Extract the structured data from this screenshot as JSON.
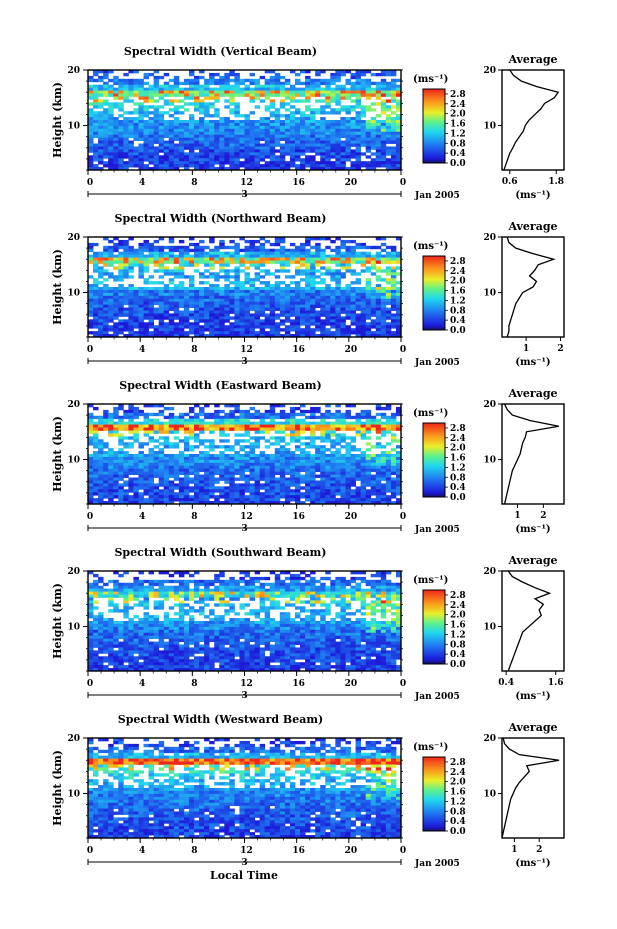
{
  "figure": {
    "x_axis_label": "Local Time",
    "date_label": "Jan 2005",
    "date_tick": "3"
  },
  "chart_data": [
    {
      "type": "heatmap",
      "title": "Spectral Width (Vertical Beam)",
      "ylabel": "Height (km)",
      "xlabel": "Local Time",
      "x_ticks": [
        "0",
        "4",
        "8",
        "12",
        "16",
        "20",
        "0"
      ],
      "x_range": [
        0,
        24
      ],
      "y_ticks": [
        "20",
        "10"
      ],
      "y_range": [
        2,
        20
      ],
      "colorbar": {
        "unit": "(ms⁻¹)",
        "ticks": [
          "2.8",
          "2.4",
          "2.0",
          "1.6",
          "1.2",
          "0.8",
          "0.4",
          "0.0"
        ],
        "range": [
          0,
          3.0
        ]
      },
      "average": {
        "title": "Average",
        "xlabel": "(ms⁻¹)",
        "x_ticks": [
          "0.6",
          "1.8"
        ],
        "x_range": [
          0.4,
          2.0
        ],
        "y_ticks": [
          "20",
          "10"
        ],
        "heights": [
          2,
          3,
          4,
          5,
          6,
          7,
          8,
          9,
          10,
          11,
          12,
          13,
          14,
          15,
          16,
          17,
          18,
          19,
          20
        ],
        "values": [
          0.45,
          0.5,
          0.55,
          0.6,
          0.68,
          0.75,
          0.85,
          0.95,
          1.0,
          1.1,
          1.25,
          1.4,
          1.5,
          1.75,
          1.85,
          1.3,
          0.9,
          0.7,
          0.6
        ]
      }
    },
    {
      "type": "heatmap",
      "title": "Spectral Width (Northward Beam)",
      "ylabel": "Height (km)",
      "xlabel": "Local Time",
      "x_ticks": [
        "0",
        "4",
        "8",
        "12",
        "16",
        "20",
        "0"
      ],
      "x_range": [
        0,
        24
      ],
      "y_ticks": [
        "20",
        "10"
      ],
      "y_range": [
        2,
        20
      ],
      "colorbar": {
        "unit": "(ms⁻¹)",
        "ticks": [
          "2.8",
          "2.4",
          "2.0",
          "1.6",
          "1.2",
          "0.8",
          "0.4",
          "0.0"
        ],
        "range": [
          0,
          3.0
        ]
      },
      "average": {
        "title": "Average",
        "xlabel": "(ms⁻¹)",
        "x_ticks": [
          "1",
          "2"
        ],
        "x_range": [
          0.3,
          2.1
        ],
        "y_ticks": [
          "20",
          "10"
        ],
        "heights": [
          2,
          3,
          4,
          5,
          6,
          7,
          8,
          9,
          10,
          11,
          12,
          13,
          14,
          15,
          16,
          17,
          18,
          19,
          20
        ],
        "values": [
          0.45,
          0.5,
          0.5,
          0.55,
          0.6,
          0.65,
          0.7,
          0.8,
          0.9,
          1.2,
          1.3,
          1.1,
          1.25,
          1.35,
          1.8,
          1.2,
          0.7,
          0.5,
          0.45
        ]
      }
    },
    {
      "type": "heatmap",
      "title": "Spectral Width (Eastward Beam)",
      "ylabel": "Height (km)",
      "xlabel": "Local Time",
      "x_ticks": [
        "0",
        "4",
        "8",
        "12",
        "16",
        "20",
        "0"
      ],
      "x_range": [
        0,
        24
      ],
      "y_ticks": [
        "20",
        "10"
      ],
      "y_range": [
        2,
        20
      ],
      "colorbar": {
        "unit": "(ms⁻¹)",
        "ticks": [
          "2.8",
          "2.4",
          "2.0",
          "1.6",
          "1.2",
          "0.8",
          "0.4",
          "0.0"
        ],
        "range": [
          0,
          3.0
        ]
      },
      "average": {
        "title": "Average",
        "xlabel": "(ms⁻¹)",
        "x_ticks": [
          "1",
          "2"
        ],
        "x_range": [
          0.4,
          2.8
        ],
        "y_ticks": [
          "20",
          "10"
        ],
        "heights": [
          2,
          3,
          4,
          5,
          6,
          7,
          8,
          9,
          10,
          11,
          12,
          13,
          14,
          15,
          16,
          17,
          18,
          19,
          20
        ],
        "values": [
          0.5,
          0.55,
          0.6,
          0.65,
          0.7,
          0.75,
          0.8,
          0.9,
          1.0,
          1.1,
          1.15,
          1.2,
          1.3,
          1.35,
          2.6,
          1.5,
          0.8,
          0.6,
          0.5
        ]
      }
    },
    {
      "type": "heatmap",
      "title": "Spectral Width (Southward Beam)",
      "ylabel": "Height (km)",
      "xlabel": "Local Time",
      "x_ticks": [
        "0",
        "4",
        "8",
        "12",
        "16",
        "20",
        "0"
      ],
      "x_range": [
        0,
        24
      ],
      "y_ticks": [
        "20",
        "10"
      ],
      "y_range": [
        2,
        20
      ],
      "colorbar": {
        "unit": "(ms⁻¹)",
        "ticks": [
          "2.8",
          "2.4",
          "2.0",
          "1.6",
          "1.2",
          "0.8",
          "0.4",
          "0.0"
        ],
        "range": [
          0,
          3.0
        ]
      },
      "average": {
        "title": "Average",
        "xlabel": "(ms⁻¹)",
        "x_ticks": [
          "0.4",
          "1.6"
        ],
        "x_range": [
          0.3,
          1.8
        ],
        "y_ticks": [
          "20",
          "10"
        ],
        "heights": [
          2,
          3,
          4,
          5,
          6,
          7,
          8,
          9,
          10,
          11,
          12,
          13,
          14,
          15,
          16,
          17,
          18,
          19,
          20
        ],
        "values": [
          0.45,
          0.5,
          0.55,
          0.6,
          0.65,
          0.7,
          0.75,
          0.8,
          0.95,
          1.1,
          1.25,
          1.2,
          1.3,
          1.1,
          1.45,
          1.1,
          0.8,
          0.55,
          0.45
        ]
      }
    },
    {
      "type": "heatmap",
      "title": "Spectral Width (Westward Beam)",
      "ylabel": "Height (km)",
      "xlabel": "Local Time",
      "x_ticks": [
        "0",
        "4",
        "8",
        "12",
        "16",
        "20",
        "0"
      ],
      "x_range": [
        0,
        24
      ],
      "y_ticks": [
        "20",
        "10"
      ],
      "y_range": [
        2,
        20
      ],
      "colorbar": {
        "unit": "(ms⁻¹)",
        "ticks": [
          "2.8",
          "2.4",
          "2.0",
          "1.6",
          "1.2",
          "0.8",
          "0.4",
          "0.0"
        ],
        "range": [
          0,
          3.0
        ]
      },
      "average": {
        "title": "Average",
        "xlabel": "(ms⁻¹)",
        "x_ticks": [
          "1",
          "2"
        ],
        "x_range": [
          0.5,
          3.0
        ],
        "y_ticks": [
          "20",
          "10"
        ],
        "heights": [
          2,
          3,
          4,
          5,
          6,
          7,
          8,
          9,
          10,
          11,
          12,
          13,
          14,
          15,
          16,
          17,
          18,
          19,
          20
        ],
        "values": [
          0.5,
          0.55,
          0.6,
          0.65,
          0.7,
          0.75,
          0.8,
          0.85,
          0.95,
          1.05,
          1.2,
          1.4,
          1.6,
          1.5,
          2.8,
          1.2,
          0.8,
          0.6,
          0.55
        ]
      }
    }
  ]
}
